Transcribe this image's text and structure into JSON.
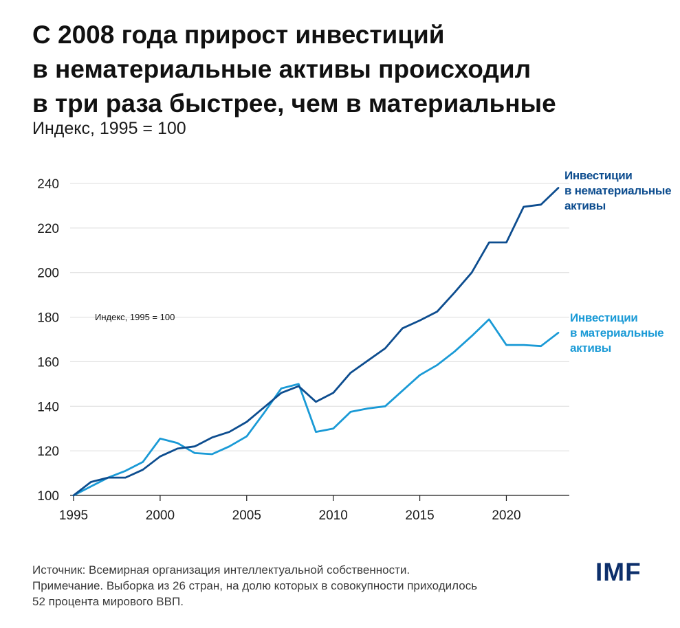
{
  "title_lines": [
    "С 2008 года прирост инвестиций",
    "в нематериальные активы происходил",
    "в три раза быстрее, чем в материальные"
  ],
  "subtitle": "Индекс, 1995 = 100",
  "annotation": "Индекс, 1995 = 100",
  "source": "Источник: Всемирная организация интеллектуальной собственности.",
  "note_lines": [
    "Примечание. Выборка из 26 стран, на долю которых в совокупности приходилось",
    "52 процента мирового ВВП."
  ],
  "logo": "IMF",
  "colors": {
    "intangible": "#0d4d8f",
    "tangible": "#1a9ad6",
    "grid": "#dcdcdc",
    "logo": "#0d2f6b"
  },
  "chart_data": {
    "type": "line",
    "x": [
      1995,
      1996,
      1997,
      1998,
      1999,
      2000,
      2001,
      2002,
      2003,
      2004,
      2005,
      2006,
      2007,
      2008,
      2009,
      2010,
      2011,
      2012,
      2013,
      2014,
      2015,
      2016,
      2017,
      2018,
      2019,
      2020,
      2021,
      2022,
      2023
    ],
    "xticks": [
      1995,
      2000,
      2005,
      2010,
      2015,
      2020
    ],
    "yticks": [
      100,
      120,
      140,
      160,
      180,
      200,
      220,
      240
    ],
    "xlim": [
      1995,
      2023
    ],
    "ylim": [
      100,
      240
    ],
    "grid": true,
    "series": [
      {
        "key": "intangible",
        "label_lines": [
          "Инвестиции",
          "в нематериальные",
          "активы"
        ],
        "values": [
          100,
          106,
          108,
          108,
          111.5,
          117.5,
          121,
          122,
          126,
          128.5,
          133,
          139.5,
          146,
          149,
          142,
          146,
          155,
          160.5,
          166,
          175,
          178.5,
          182.5,
          191,
          200,
          213.5,
          213.5,
          229.5,
          230.5,
          238
        ]
      },
      {
        "key": "tangible",
        "label_lines": [
          "Инвестиции",
          "в материальные",
          "активы"
        ],
        "values": [
          100,
          104,
          108,
          111,
          115,
          125.5,
          123.5,
          119,
          118.5,
          122,
          126.5,
          137,
          148,
          150,
          128.5,
          130,
          137.5,
          139,
          140,
          147,
          154,
          158.5,
          164.5,
          171.5,
          179,
          167.5,
          167.5,
          167,
          173
        ]
      }
    ]
  }
}
